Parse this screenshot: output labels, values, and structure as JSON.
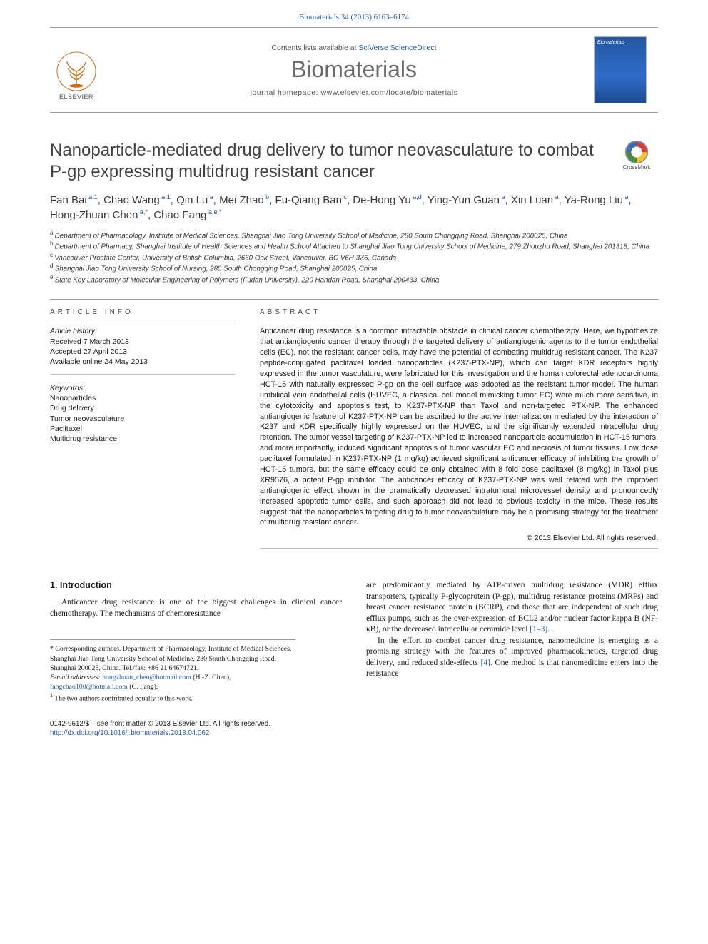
{
  "header": {
    "citation": "Biomaterials 34 (2013) 6163–6174"
  },
  "banner": {
    "publisher_name": "ELSEVIER",
    "contents_prefix": "Contents lists available at ",
    "contents_link": "SciVerse ScienceDirect",
    "journal_name": "Biomaterials",
    "homepage_prefix": "journal homepage: ",
    "homepage_url": "www.elsevier.com/locate/biomaterials",
    "cover_title": "Biomaterials"
  },
  "crossmark": {
    "label": "CrossMark"
  },
  "article": {
    "title": "Nanoparticle-mediated drug delivery to tumor neovasculature to combat P-gp expressing multidrug resistant cancer",
    "authors_html_parts": [
      {
        "name": "Fan Bai",
        "sup": "a,1"
      },
      {
        "name": "Chao Wang",
        "sup": "a,1"
      },
      {
        "name": "Qin Lu",
        "sup": "a"
      },
      {
        "name": "Mei Zhao",
        "sup": "b"
      },
      {
        "name": "Fu-Qiang Ban",
        "sup": "c"
      },
      {
        "name": "De-Hong Yu",
        "sup": "a,d"
      },
      {
        "name": "Ying-Yun Guan",
        "sup": "a"
      },
      {
        "name": "Xin Luan",
        "sup": "a"
      },
      {
        "name": "Ya-Rong Liu",
        "sup": "a"
      },
      {
        "name": "Hong-Zhuan Chen",
        "sup": "a,*"
      },
      {
        "name": "Chao Fang",
        "sup": "a,e,*"
      }
    ],
    "affiliations": [
      {
        "key": "a",
        "text": "Department of Pharmacology, Institute of Medical Sciences, Shanghai Jiao Tong University School of Medicine, 280 South Chongqing Road, Shanghai 200025, China"
      },
      {
        "key": "b",
        "text": "Department of Pharmacy, Shanghai Institute of Health Sciences and Health School Attached to Shanghai Jiao Tong University School of Medicine, 279 Zhouzhu Road, Shanghai 201318, China"
      },
      {
        "key": "c",
        "text": "Vancouver Prostate Center, University of British Columbia, 2660 Oak Street, Vancouver, BC V6H 3Z6, Canada"
      },
      {
        "key": "d",
        "text": "Shanghai Jiao Tong University School of Nursing, 280 South Chongqing Road, Shanghai 200025, China"
      },
      {
        "key": "e",
        "text": "State Key Laboratory of Molecular Engineering of Polymers (Fudan University), 220 Handan Road, Shanghai 200433, China"
      }
    ]
  },
  "info": {
    "section_label": "ARTICLE INFO",
    "history_header": "Article history:",
    "received": "Received 7 March 2013",
    "accepted": "Accepted 27 April 2013",
    "online": "Available online 24 May 2013",
    "keywords_header": "Keywords:",
    "keywords": [
      "Nanoparticles",
      "Drug delivery",
      "Tumor neovasculature",
      "Paclitaxel",
      "Multidrug resistance"
    ]
  },
  "abstract": {
    "section_label": "ABSTRACT",
    "text": "Anticancer drug resistance is a common intractable obstacle in clinical cancer chemotherapy. Here, we hypothesize that antiangiogenic cancer therapy through the targeted delivery of antiangiogenic agents to the tumor endothelial cells (EC), not the resistant cancer cells, may have the potential of combating multidrug resistant cancer. The K237 peptide-conjugated paclitaxel loaded nanoparticles (K237-PTX-NP), which can target KDR receptors highly expressed in the tumor vasculature, were fabricated for this investigation and the human colorectal adenocarcinoma HCT-15 with naturally expressed P-gp on the cell surface was adopted as the resistant tumor model. The human umbilical vein endothelial cells (HUVEC, a classical cell model mimicking tumor EC) were much more sensitive, in the cytotoxicity and apoptosis test, to K237-PTX-NP than Taxol and non-targeted PTX-NP. The enhanced antiangiogenic feature of K237-PTX-NP can be ascribed to the active internalization mediated by the interaction of K237 and KDR specifically highly expressed on the HUVEC, and the significantly extended intracellular drug retention. The tumor vessel targeting of K237-PTX-NP led to increased nanoparticle accumulation in HCT-15 tumors, and more importantly, induced significant apoptosis of tumor vascular EC and necrosis of tumor tissues. Low dose paclitaxel formulated in K237-PTX-NP (1 mg/kg) achieved significant anticancer efficacy of inhibiting the growth of HCT-15 tumors, but the same efficacy could be only obtained with 8 fold dose paclitaxel (8 mg/kg) in Taxol plus XR9576, a potent P-gp inhibitor. The anticancer efficacy of K237-PTX-NP was well related with the improved antiangiogenic effect shown in the dramatically decreased intratumoral microvessel density and pronouncedly increased apoptotic tumor cells, and such approach did not lead to obvious toxicity in the mice. These results suggest that the nanoparticles targeting drug to tumor neovasculature may be a promising strategy for the treatment of multidrug resistant cancer.",
    "copyright": "© 2013 Elsevier Ltd. All rights reserved."
  },
  "body": {
    "intro_heading": "1. Introduction",
    "col1_p1": "Anticancer drug resistance is one of the biggest challenges in clinical cancer chemotherapy. The mechanisms of chemoresistance",
    "col2_p1": "are predominantly mediated by ATP-driven multidrug resistance (MDR) efflux transporters, typically P-glycoprotein (P-gp), multidrug resistance proteins (MRPs) and breast cancer resistance protein (BCRP), and those that are independent of such drug efflux pumps, such as the over-expression of BCL2 and/or nuclear factor kappa B (NF-κB), or the decreased intracellular ceramide level ",
    "col2_ref1": "[1–3]",
    "col2_p1_end": ".",
    "col2_p2": "In the effort to combat cancer drug resistance, nanomedicine is emerging as a promising strategy with the features of improved pharmacokinetics, targeted drug delivery, and reduced side-effects ",
    "col2_ref2": "[4]",
    "col2_p2_end": ". One method is that nanomedicine enters into the resistance"
  },
  "footnotes": {
    "corr_mark": "* ",
    "corr_text": "Corresponding authors. Department of Pharmacology, Institute of Medical Sciences, Shanghai Jiao Tong University School of Medicine, 280 South Chongqing Road, Shanghai 200025, China. Tel./fax: +86 21 64674721.",
    "email_label": "E-mail addresses: ",
    "email1": "hongzhuan_chen@hotmail.com",
    "email1_who": " (H.-Z. Chen), ",
    "email2": "fangchao100@hotmail.com",
    "email2_who": " (C. Fang).",
    "equal_mark": "1 ",
    "equal_text": "The two authors contributed equally to this work."
  },
  "footer": {
    "issn_line": "0142-9612/$ – see front matter © 2013 Elsevier Ltd. All rights reserved.",
    "doi": "http://dx.doi.org/10.1016/j.biomaterials.2013.04.062"
  },
  "colors": {
    "link": "#2a5da8",
    "journal_name": "#6a6a6a",
    "title_text": "#414141",
    "rule": "#999999",
    "sub_rule": "#bbbbbb"
  },
  "typography": {
    "journal_name_fontsize": 32,
    "title_fontsize": 24,
    "authors_fontsize": 15,
    "body_fontsize": 11.5,
    "abstract_fontsize": 10.8
  }
}
